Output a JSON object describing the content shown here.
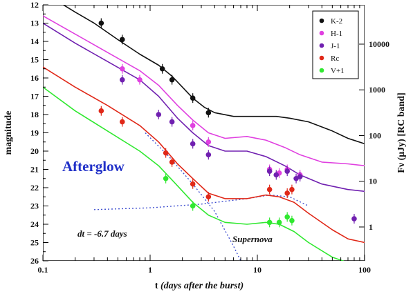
{
  "chart_data": {
    "type": "scatter",
    "xlabel": "t (days after the burst)",
    "ylabel": "magnitude",
    "y2label": "Fν (μJy) [RC band]",
    "x_scale": "log",
    "xlim": [
      0.1,
      100
    ],
    "ylim": [
      26,
      12
    ],
    "y_inverted": true,
    "x_ticks": [
      "0.1",
      "1",
      "10",
      "100"
    ],
    "y_ticks": [
      "12",
      "13",
      "14",
      "15",
      "16",
      "17",
      "18",
      "19",
      "20",
      "21",
      "22",
      "23",
      "24",
      "25",
      "26"
    ],
    "y2_ticks": [
      {
        "label": "10000",
        "mag": 14.15
      },
      {
        "label": "1000",
        "mag": 16.65
      },
      {
        "label": "100",
        "mag": 19.15
      },
      {
        "label": "10",
        "mag": 21.65
      },
      {
        "label": "1",
        "mag": 24.15
      }
    ],
    "legend_position": "top-right",
    "series": [
      {
        "name": "K-2",
        "color": "#111111",
        "points": [
          [
            0.35,
            13.0
          ],
          [
            0.55,
            13.9
          ],
          [
            1.3,
            15.5
          ],
          [
            1.6,
            16.1
          ],
          [
            2.5,
            17.1
          ],
          [
            3.5,
            17.9
          ]
        ],
        "model": [
          [
            0.12,
            11.6
          ],
          [
            0.2,
            12.4
          ],
          [
            0.3,
            13.0
          ],
          [
            0.5,
            13.9
          ],
          [
            0.8,
            14.7
          ],
          [
            1.2,
            15.3
          ],
          [
            1.6,
            15.9
          ],
          [
            2.0,
            16.5
          ],
          [
            2.5,
            17.1
          ],
          [
            3.2,
            17.6
          ],
          [
            4.0,
            17.9
          ],
          [
            6,
            18.1
          ],
          [
            10,
            18.1
          ],
          [
            15,
            18.1
          ],
          [
            20,
            18.2
          ],
          [
            30,
            18.4
          ],
          [
            50,
            18.9
          ],
          [
            70,
            19.3
          ],
          [
            100,
            19.6
          ]
        ]
      },
      {
        "name": "H-1",
        "color": "#e040e0",
        "points": [
          [
            0.55,
            15.5
          ],
          [
            0.8,
            16.1
          ],
          [
            2.5,
            18.6
          ],
          [
            3.5,
            19.5
          ],
          [
            13,
            21.0
          ],
          [
            16,
            21.2
          ],
          [
            19,
            21.0
          ],
          [
            25,
            21.3
          ]
        ],
        "model": [
          [
            0.1,
            12.6
          ],
          [
            0.2,
            13.6
          ],
          [
            0.4,
            14.6
          ],
          [
            0.8,
            15.6
          ],
          [
            1.2,
            16.4
          ],
          [
            1.8,
            17.5
          ],
          [
            2.5,
            18.3
          ],
          [
            3.5,
            19.0
          ],
          [
            5,
            19.3
          ],
          [
            8,
            19.2
          ],
          [
            12,
            19.4
          ],
          [
            18,
            19.8
          ],
          [
            25,
            20.2
          ],
          [
            40,
            20.6
          ],
          [
            70,
            20.7
          ],
          [
            100,
            20.8
          ]
        ]
      },
      {
        "name": "J-1",
        "color": "#7020b0",
        "points": [
          [
            0.55,
            16.1
          ],
          [
            1.2,
            18.0
          ],
          [
            1.6,
            18.4
          ],
          [
            2.5,
            19.6
          ],
          [
            3.5,
            20.2
          ],
          [
            13,
            21.1
          ],
          [
            15,
            21.3
          ],
          [
            19,
            21.1
          ],
          [
            23,
            21.5
          ],
          [
            25,
            21.4
          ],
          [
            80,
            23.7
          ]
        ],
        "model": [
          [
            0.1,
            13.0
          ],
          [
            0.2,
            14.1
          ],
          [
            0.4,
            15.1
          ],
          [
            0.8,
            16.1
          ],
          [
            1.2,
            17.0
          ],
          [
            1.8,
            18.2
          ],
          [
            2.5,
            19.0
          ],
          [
            3.5,
            19.7
          ],
          [
            5,
            20.0
          ],
          [
            8,
            20.0
          ],
          [
            12,
            20.3
          ],
          [
            18,
            20.8
          ],
          [
            25,
            21.3
          ],
          [
            40,
            21.8
          ],
          [
            70,
            22.1
          ],
          [
            100,
            22.2
          ]
        ]
      },
      {
        "name": "Rc",
        "color": "#e02818",
        "points": [
          [
            0.35,
            17.8
          ],
          [
            0.55,
            18.4
          ],
          [
            1.4,
            20.1
          ],
          [
            1.6,
            20.6
          ],
          [
            2.5,
            21.8
          ],
          [
            3.5,
            22.5
          ],
          [
            13,
            22.1
          ],
          [
            19,
            22.3
          ],
          [
            21,
            22.1
          ]
        ],
        "model": [
          [
            0.1,
            15.4
          ],
          [
            0.2,
            16.5
          ],
          [
            0.4,
            17.5
          ],
          [
            0.8,
            18.6
          ],
          [
            1.2,
            19.5
          ],
          [
            1.8,
            20.7
          ],
          [
            2.5,
            21.5
          ],
          [
            3.5,
            22.3
          ],
          [
            5,
            22.6
          ],
          [
            8,
            22.6
          ],
          [
            12,
            22.4
          ],
          [
            16,
            22.5
          ],
          [
            22,
            22.8
          ],
          [
            30,
            23.4
          ],
          [
            50,
            24.3
          ],
          [
            70,
            24.8
          ],
          [
            100,
            25.0
          ]
        ]
      },
      {
        "name": "V+1",
        "color": "#30e830",
        "points": [
          [
            1.4,
            21.5
          ],
          [
            2.5,
            23.0
          ],
          [
            13,
            23.9
          ],
          [
            16,
            23.9
          ],
          [
            19,
            23.6
          ],
          [
            21,
            23.8
          ]
        ],
        "model": [
          [
            0.1,
            16.5
          ],
          [
            0.2,
            17.8
          ],
          [
            0.4,
            18.9
          ],
          [
            0.8,
            20.0
          ],
          [
            1.2,
            20.8
          ],
          [
            1.8,
            21.9
          ],
          [
            2.5,
            22.8
          ],
          [
            3.5,
            23.5
          ],
          [
            5,
            23.9
          ],
          [
            8,
            24.0
          ],
          [
            12,
            23.9
          ],
          [
            16,
            24.0
          ],
          [
            22,
            24.4
          ],
          [
            30,
            25.0
          ],
          [
            50,
            25.8
          ],
          [
            70,
            26.1
          ]
        ]
      }
    ],
    "reference_lines": [
      {
        "label": "Afterglow",
        "color": "#4050d0",
        "style": "dotted",
        "points": [
          [
            0.9,
            19.0
          ],
          [
            1.5,
            20.3
          ],
          [
            2.5,
            21.8
          ],
          [
            4,
            23.3
          ],
          [
            6,
            25.2
          ],
          [
            7,
            26.0
          ]
        ]
      },
      {
        "label": "Supernova",
        "color": "#4050d0",
        "style": "dotted",
        "points": [
          [
            0.3,
            23.2
          ],
          [
            1,
            23.1
          ],
          [
            3,
            22.9
          ],
          [
            8,
            22.6
          ],
          [
            13,
            22.4
          ],
          [
            20,
            22.5
          ],
          [
            30,
            23.0
          ]
        ]
      }
    ],
    "annotations": [
      {
        "text": "Afterglow",
        "style": "afterglow"
      },
      {
        "text": "dt = -6.7 days",
        "style": "italic"
      },
      {
        "text": "Supernova",
        "style": "italic"
      }
    ]
  }
}
